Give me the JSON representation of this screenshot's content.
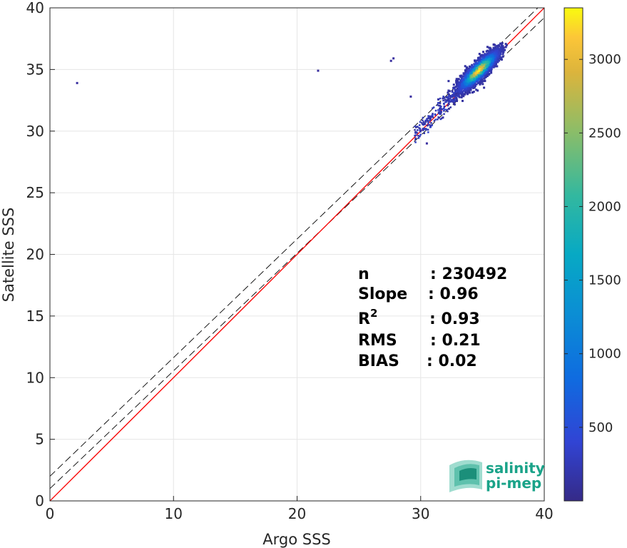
{
  "chart_data": {
    "type": "scatter",
    "subtype": "density-scatter (2D histogram)",
    "xlabel": "Argo SSS",
    "ylabel": "Satellite SSS",
    "xlim": [
      0,
      40
    ],
    "ylim": [
      0,
      40
    ],
    "x_ticks": [
      0,
      10,
      20,
      30,
      40
    ],
    "y_ticks": [
      0,
      5,
      10,
      15,
      20,
      25,
      30,
      35,
      40
    ],
    "grid": true,
    "reference_lines": [
      {
        "name": "1:1 line",
        "color": "#000000",
        "style": "solid",
        "points": [
          [
            0,
            0
          ],
          [
            40,
            40
          ]
        ]
      },
      {
        "name": "upper bound",
        "color": "#000000",
        "style": "dashed",
        "points": [
          [
            0,
            2.0
          ],
          [
            40,
            40.5
          ]
        ]
      },
      {
        "name": "lower bound",
        "color": "#000000",
        "style": "dashed",
        "points": [
          [
            0,
            1.0
          ],
          [
            40,
            39.2
          ]
        ]
      },
      {
        "name": "regression fit",
        "color": "#ff0000",
        "style": "solid",
        "points": [
          [
            0,
            0
          ],
          [
            40,
            40
          ]
        ]
      }
    ],
    "density_cluster": {
      "x_range": [
        29.5,
        37.0
      ],
      "y_range": [
        29.5,
        37.0
      ],
      "peak": [
        34.7,
        34.9
      ]
    },
    "outliers": [
      [
        2.2,
        33.9
      ],
      [
        21.7,
        34.9
      ],
      [
        27.6,
        35.7
      ],
      [
        27.8,
        35.9
      ],
      [
        29.2,
        32.8
      ],
      [
        31.8,
        31.1
      ],
      [
        30.5,
        29.0
      ]
    ],
    "colorbar": {
      "ticks": [
        500,
        1000,
        1500,
        2000,
        2500,
        3000
      ],
      "range": [
        0,
        3350
      ],
      "colormap": "parula"
    },
    "stats": [
      {
        "label": "n",
        "value": ": 230492"
      },
      {
        "label": "Slope",
        "value": ": 0.96"
      },
      {
        "label": "R",
        "sup": "2",
        "value": ": 0.93"
      },
      {
        "label": "RMS",
        "value": ": 0.21"
      },
      {
        "label": "BIAS",
        "value": ": 0.02"
      }
    ]
  },
  "logo": {
    "line1": "salinity",
    "line2": "pi-mep"
  }
}
